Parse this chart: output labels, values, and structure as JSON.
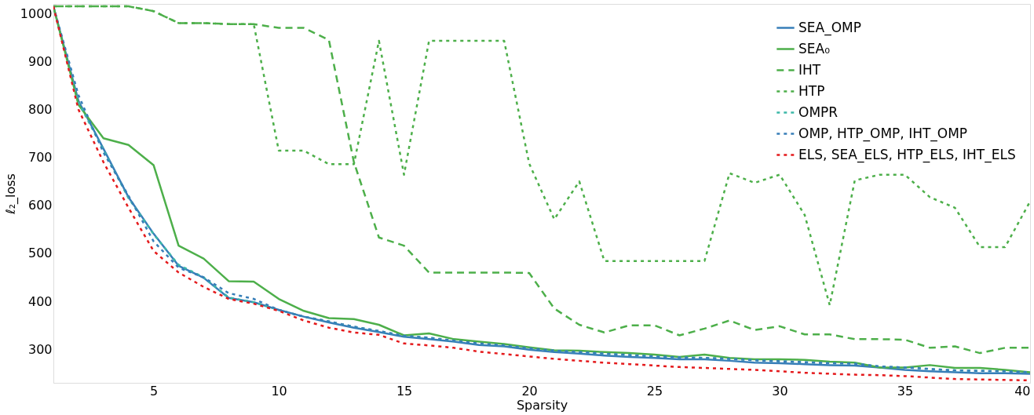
{
  "chart_data": {
    "type": "line",
    "xlabel": "Sparsity",
    "ylabel": "ℓ₂_loss",
    "x": [
      1,
      2,
      3,
      4,
      5,
      6,
      7,
      8,
      9,
      10,
      11,
      12,
      13,
      14,
      15,
      16,
      17,
      18,
      19,
      20,
      21,
      22,
      23,
      24,
      25,
      26,
      27,
      28,
      29,
      30,
      31,
      32,
      33,
      34,
      35,
      36,
      37,
      38,
      39,
      40
    ],
    "xlim": [
      1,
      40
    ],
    "xticks": [
      5,
      10,
      15,
      20,
      25,
      30,
      35,
      40
    ],
    "ylim": [
      230,
      1020
    ],
    "yticks": [
      300,
      400,
      500,
      600,
      700,
      800,
      900,
      1000
    ],
    "grid": false,
    "legend": "top right",
    "series": [
      {
        "name": "SEA_OMP",
        "color": "#377eb8",
        "line_style": "solid",
        "values": [
          1015,
          818,
          718,
          617,
          541,
          474,
          449,
          407,
          398,
          382,
          368,
          356,
          345,
          336,
          326,
          321,
          316,
          309,
          306,
          299,
          294,
          291,
          287,
          284,
          282,
          279,
          279,
          276,
          272,
          271,
          269,
          267,
          266,
          262,
          257,
          254,
          252,
          250,
          250,
          249
        ]
      },
      {
        "name": "SEA₀",
        "color": "#4daf4a",
        "line_style": "solid",
        "values": [
          1015,
          810,
          740,
          726,
          684,
          516,
          489,
          442,
          441,
          405,
          380,
          365,
          363,
          351,
          329,
          333,
          321,
          316,
          311,
          304,
          298,
          297,
          294,
          292,
          289,
          284,
          289,
          282,
          279,
          279,
          278,
          274,
          272,
          262,
          262,
          267,
          261,
          261,
          257,
          252
        ]
      },
      {
        "name": "IHT",
        "color": "#4daf4a",
        "line_style": "dashed",
        "values": [
          1015,
          1015,
          1015,
          1015,
          1005,
          980,
          980,
          978,
          978,
          970,
          970,
          945,
          690,
          533,
          516,
          460,
          460,
          460,
          460,
          459,
          385,
          351,
          335,
          350,
          350,
          329,
          343,
          360,
          340,
          348,
          331,
          331,
          321,
          321,
          320,
          303,
          306,
          292,
          303,
          303
        ]
      },
      {
        "name": "HTP",
        "color": "#4daf4a",
        "line_style": "dotted",
        "values": [
          1015,
          1015,
          1015,
          1015,
          1005,
          980,
          980,
          978,
          978,
          714,
          714,
          686,
          686,
          943,
          664,
          943,
          943,
          943,
          943,
          687,
          571,
          650,
          484,
          484,
          484,
          484,
          484,
          667,
          647,
          664,
          580,
          392,
          652,
          664,
          664,
          617,
          595,
          513,
          513,
          608
        ]
      },
      {
        "name": "OMPR",
        "color": "#3cb8a8",
        "line_style": "dotted",
        "values": [
          1015,
          815,
          715,
          615,
          540,
          476,
          450,
          408,
          398,
          382,
          368,
          358,
          347,
          338,
          328,
          324,
          318,
          312,
          308,
          302,
          297,
          294,
          291,
          288,
          285,
          283,
          282,
          280,
          277,
          275,
          273,
          271,
          270,
          264,
          262,
          259,
          256,
          255,
          254,
          252
        ]
      },
      {
        "name": "OMP, HTP_OMP, IHT_OMP",
        "color": "#377eb8",
        "line_style": "dotted",
        "values": [
          1015,
          830,
          710,
          620,
          525,
          470,
          450,
          417,
          405,
          382,
          368,
          358,
          347,
          338,
          328,
          324,
          318,
          312,
          308,
          302,
          297,
          294,
          291,
          288,
          285,
          283,
          282,
          280,
          277,
          275,
          273,
          271,
          270,
          264,
          262,
          259,
          256,
          255,
          254,
          252
        ]
      },
      {
        "name": "ELS, SEA_ELS, HTP_ELS, IHT_ELS",
        "color": "#e41a1c",
        "line_style": "dotted",
        "values": [
          1015,
          800,
          690,
          595,
          505,
          460,
          430,
          405,
          395,
          380,
          360,
          345,
          335,
          330,
          312,
          308,
          303,
          295,
          290,
          285,
          280,
          276,
          272,
          269,
          266,
          263,
          261,
          259,
          257,
          254,
          251,
          249,
          247,
          246,
          244,
          241,
          238,
          237,
          236,
          235
        ]
      }
    ]
  }
}
